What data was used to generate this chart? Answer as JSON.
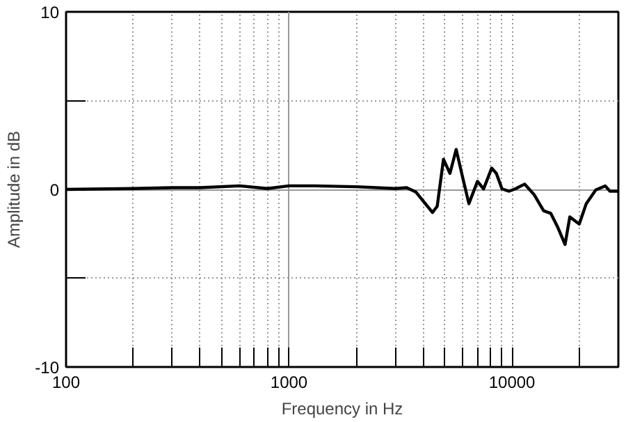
{
  "chart_data": {
    "type": "line",
    "xlabel": "Frequency in Hz",
    "ylabel": "Amplitude in dB",
    "log": "x",
    "grid": true,
    "line_style": "solid",
    "xlim": [
      100,
      30000
    ],
    "ylim": [
      -10,
      10
    ],
    "xticks": [
      100,
      {
        "value": 200,
        "label": null
      },
      {
        "value": 300,
        "label": null
      },
      {
        "value": 400,
        "label": null
      },
      {
        "value": 500,
        "label": null
      },
      {
        "value": 600,
        "label": null
      },
      {
        "value": 700,
        "label": null
      },
      {
        "value": 800,
        "label": null
      },
      {
        "value": 900,
        "label": null
      },
      1000,
      {
        "value": 2000,
        "label": null
      },
      {
        "value": 3000,
        "label": null
      },
      {
        "value": 4000,
        "label": null
      },
      {
        "value": 5000,
        "label": null
      },
      {
        "value": 6000,
        "label": null
      },
      {
        "value": 7000,
        "label": null
      },
      {
        "value": 8000,
        "label": null
      },
      {
        "value": 9000,
        "label": null
      },
      10000,
      {
        "value": 20000,
        "label": null
      }
    ],
    "yticks": [
      -10,
      {
        "value": -5,
        "label": null
      },
      0,
      {
        "value": 5,
        "label": null
      },
      10
    ],
    "series": [
      {
        "color": "#000000",
        "x": [
          100,
          200,
          300,
          400,
          600,
          800,
          1000,
          1300,
          2000,
          3000,
          3370,
          3710,
          4400,
          4620,
          4930,
          5270,
          5620,
          5990,
          6410,
          7000,
          7460,
          8110,
          8510,
          9020,
          9710,
          10340,
          11400,
          12580,
          13860,
          14930,
          16070,
          17300,
          18170,
          20030,
          21540,
          23760,
          26190,
          27480,
          30000
        ],
        "values": [
          0,
          0.05,
          0.1,
          0.1,
          0.2,
          0.05,
          0.2,
          0.2,
          0.15,
          0.05,
          0.1,
          -0.15,
          -1.3,
          -0.95,
          1.7,
          0.9,
          2.25,
          0.75,
          -0.8,
          0.45,
          0.03,
          1.2,
          0.9,
          0.03,
          -0.1,
          0.03,
          0.3,
          -0.3,
          -1.2,
          -1.35,
          -2.15,
          -3.1,
          -1.55,
          -1.95,
          -0.8,
          -0.03,
          0.2,
          -0.1,
          -0.1
        ]
      }
    ]
  }
}
